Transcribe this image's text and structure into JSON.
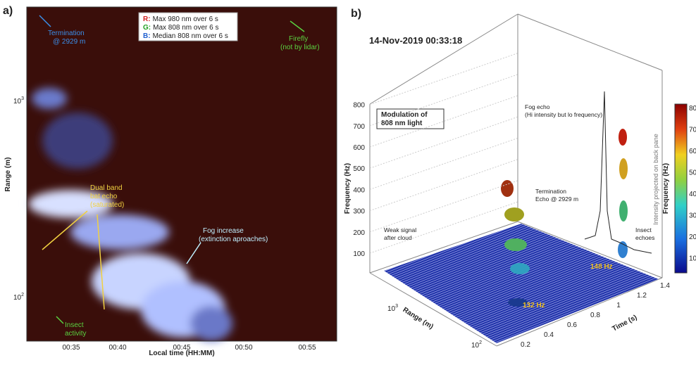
{
  "panel_a": {
    "label": "a)",
    "xlabel": "Local time (HH:MM)",
    "ylabel": "Range (m)",
    "xticks": [
      "00:35",
      "00:40",
      "00:45",
      "00:50",
      "00:55"
    ],
    "yticks": [
      {
        "base": "10",
        "exp": "3"
      },
      {
        "base": "10",
        "exp": "2"
      }
    ],
    "legend": [
      {
        "key": "R:",
        "text": "Max 980 nm over 6 s"
      },
      {
        "key": "G:",
        "text": "Max 808 nm over 6 s"
      },
      {
        "key": "B:",
        "text": "Median 808 nm over 6 s"
      }
    ],
    "annotations": {
      "termination": [
        "Termination",
        "@ 2929 m"
      ],
      "firefly": [
        "Firefly",
        "(not by lidar)"
      ],
      "bat": [
        "Dual band",
        "bat echo",
        "(saturated)"
      ],
      "fog": [
        "Fog increase",
        "(extinction aproaches)"
      ],
      "insect": [
        "Insect",
        "activity"
      ]
    }
  },
  "panel_b": {
    "label": "b)",
    "title": "14-Nov-2019 00:33:18",
    "zlabel": "Frequency (Hz)",
    "zticks": [
      "100",
      "200",
      "300",
      "400",
      "500",
      "600",
      "700",
      "800"
    ],
    "range_label": "Range (m)",
    "range_ticks": [
      {
        "base": "10",
        "exp": "3"
      },
      {
        "base": "10",
        "exp": "2"
      }
    ],
    "time_label": "Time (s)",
    "time_ticks": [
      "0.2",
      "0.4",
      "0.6",
      "0.8",
      "1",
      "1.2",
      "1.4"
    ],
    "box": [
      "Modulation of",
      "808 nm light"
    ],
    "colorbar_label": "Frequency (Hz)",
    "colorbar_ticks": [
      "80",
      "70",
      "60",
      "50",
      "40",
      "30",
      "20",
      "10"
    ],
    "back_pane": "Intensity projected on back pane",
    "annotations": {
      "fog": [
        "Fog echo",
        "(Hi intensity but lo frequency)"
      ],
      "termination": [
        "Termination",
        "Echo @ 2929 m"
      ],
      "weak": [
        "Weak signal",
        "after cloud"
      ],
      "insect": [
        "Insect",
        "echoes"
      ],
      "hz148": "148 Hz",
      "hz132": "132 Hz"
    }
  }
}
